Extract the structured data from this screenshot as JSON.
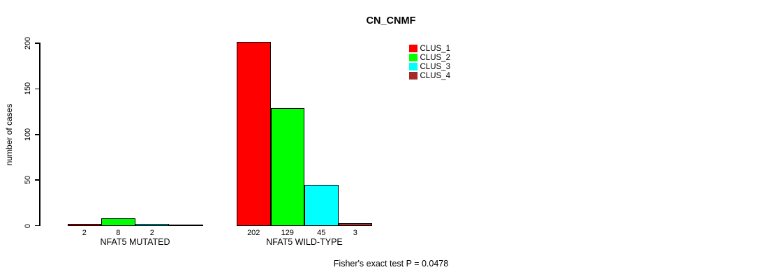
{
  "title": "CN_CNMF",
  "y_axis": {
    "label": "number of cases"
  },
  "footer": "Fisher's exact test P = 0.0478",
  "legend": {
    "items": [
      {
        "label": "CLUS_1",
        "color": "#FF0000"
      },
      {
        "label": "CLUS_2",
        "color": "#00FF00"
      },
      {
        "label": "CLUS_3",
        "color": "#00FFFF"
      },
      {
        "label": "CLUS_4",
        "color": "#A52A2A"
      }
    ]
  },
  "chart_data": {
    "type": "bar",
    "title": "CN_CNMF",
    "xlabel": "",
    "ylabel": "number of cases",
    "ylim": [
      0,
      200
    ],
    "yticks": [
      0,
      50,
      100,
      150,
      200
    ],
    "grid": false,
    "legend_position": "upper-right",
    "categories": [
      "NFAT5 MUTATED",
      "NFAT5 WILD-TYPE"
    ],
    "series": [
      {
        "name": "CLUS_1",
        "color": "#FF0000",
        "values": [
          2,
          202
        ]
      },
      {
        "name": "CLUS_2",
        "color": "#00FF00",
        "values": [
          8,
          129
        ]
      },
      {
        "name": "CLUS_3",
        "color": "#00FFFF",
        "values": [
          2,
          45
        ]
      },
      {
        "name": "CLUS_4",
        "color": "#A52A2A",
        "values": [
          0,
          3
        ]
      }
    ],
    "bar_value_labels": [
      [
        "2",
        "8",
        "2",
        ""
      ],
      [
        "202",
        "129",
        "45",
        "3"
      ]
    ],
    "annotation": "Fisher's exact test P = 0.0478"
  }
}
